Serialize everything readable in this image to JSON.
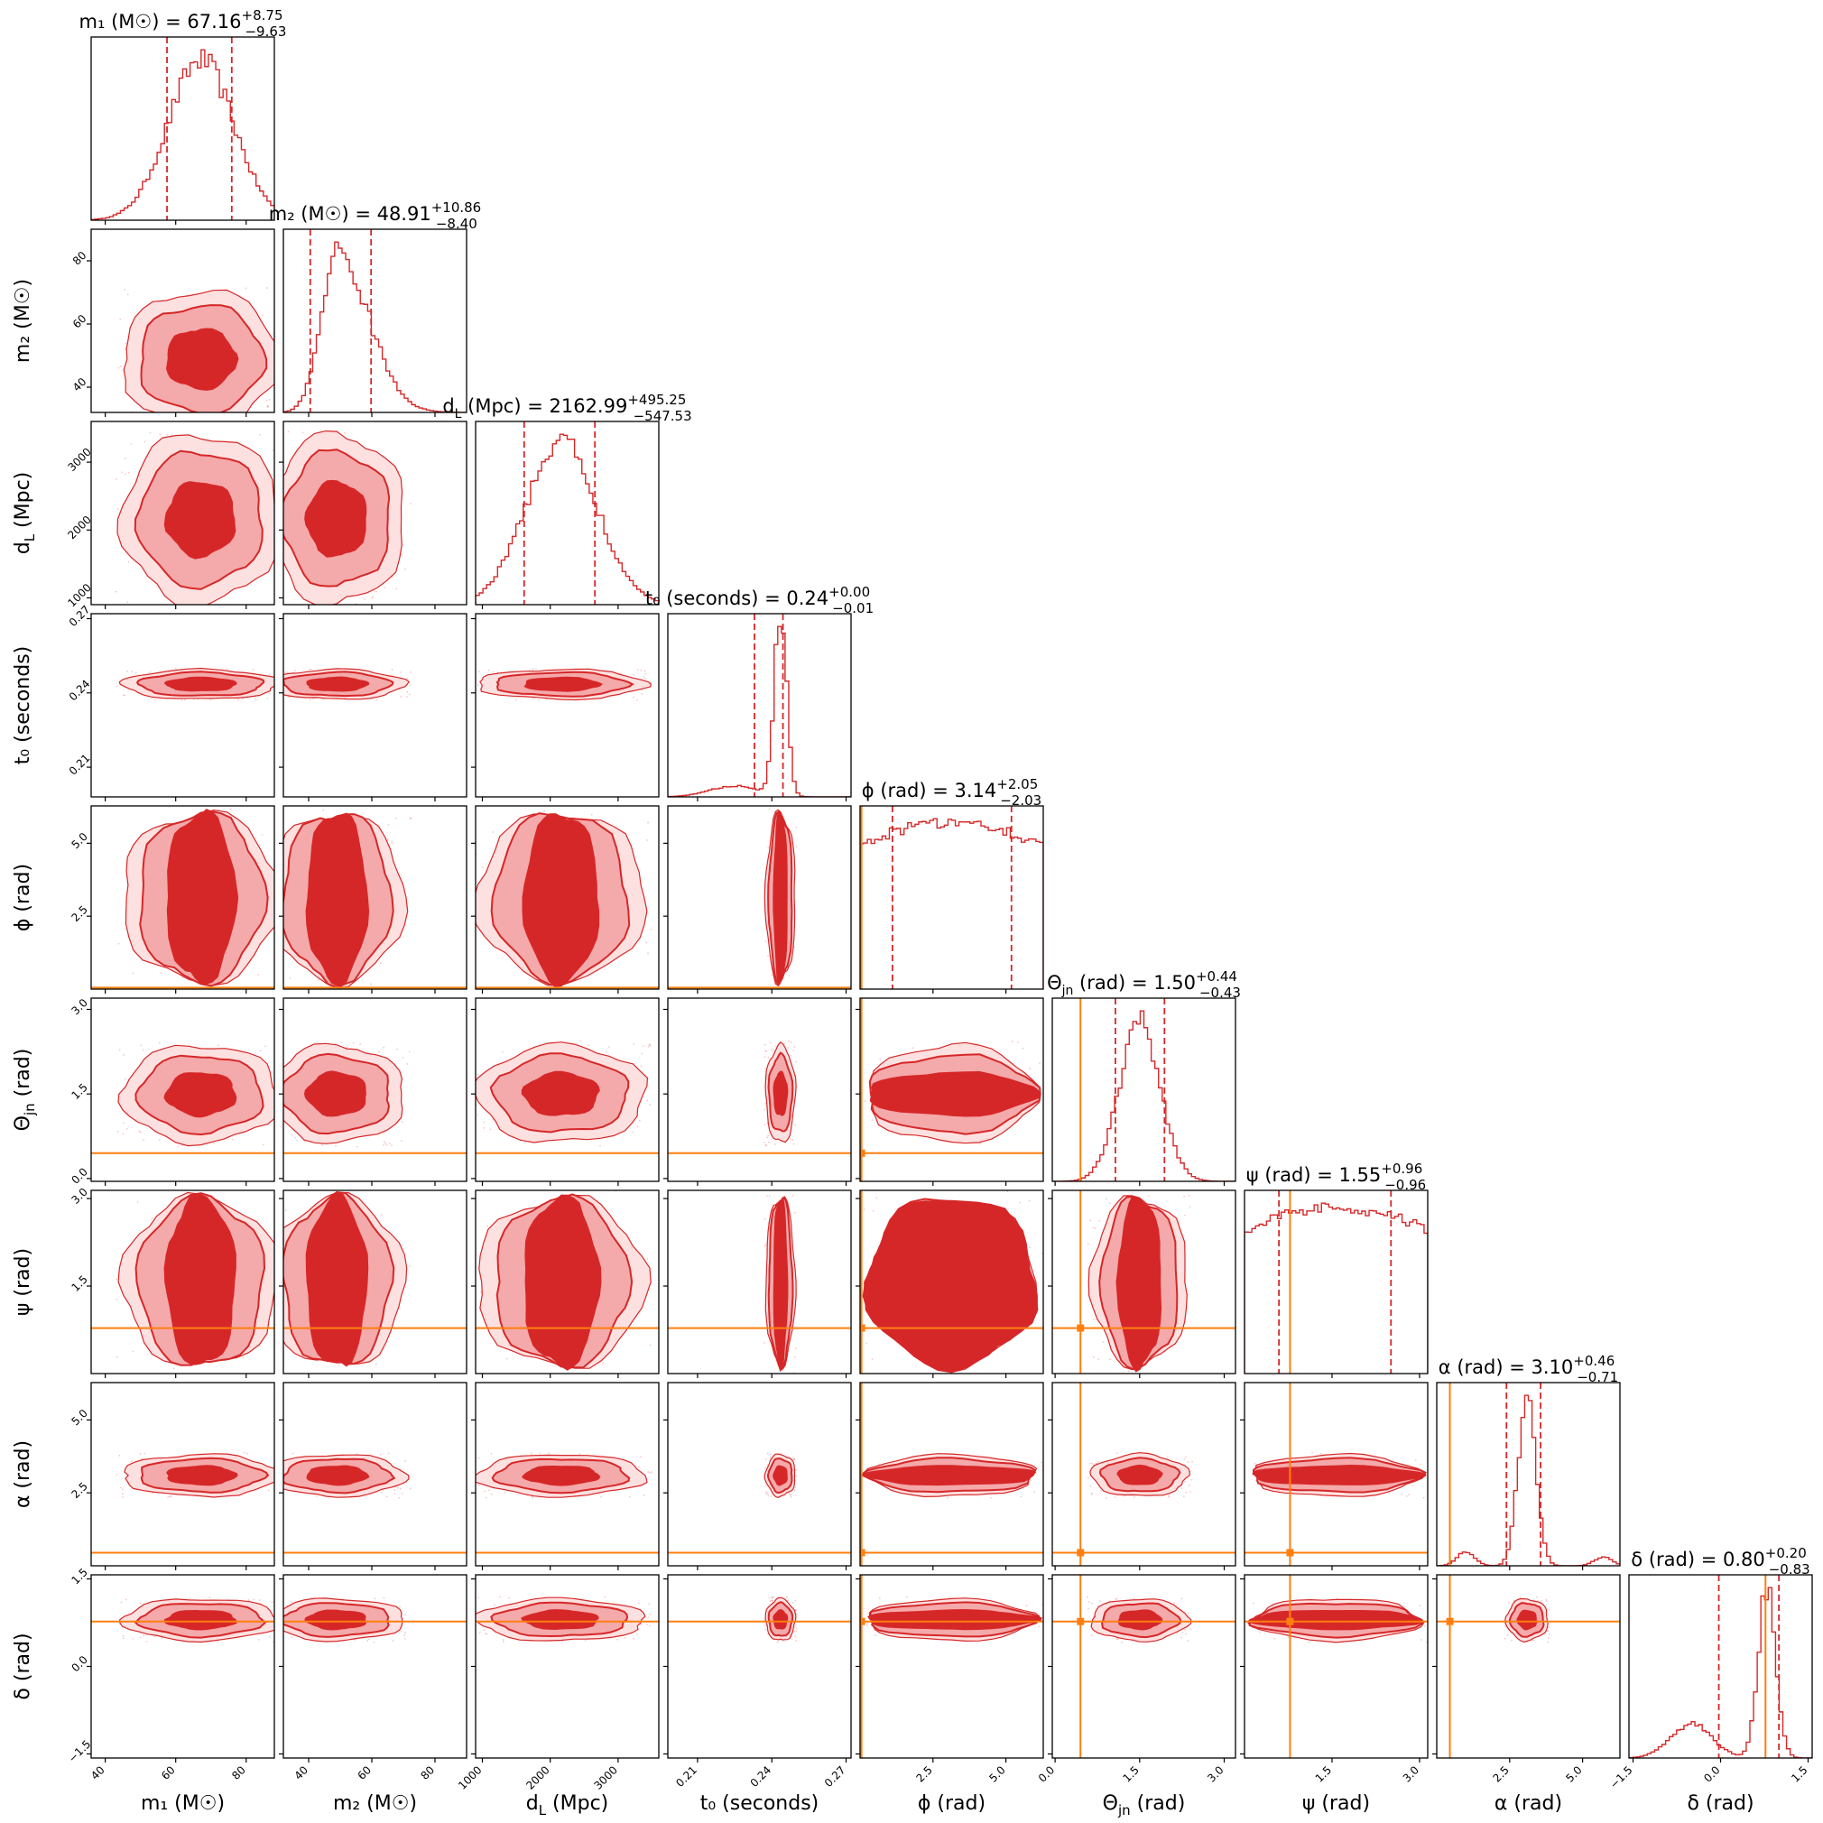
{
  "chart_data": {
    "type": "corner",
    "colors": {
      "posterior": "#d62728",
      "posterior_light": "#f4a9aa",
      "truth": "#ff7f0e"
    },
    "params": [
      {
        "key": "m1",
        "label": "m₁ (M☉)",
        "title": {
          "name": "m₁ (M☉)",
          "median": "67.16",
          "plus": "+8.75",
          "minus": "−9.63"
        },
        "range": [
          36,
          88
        ],
        "ticks": [
          {
            "v": 40,
            "t": "40"
          },
          {
            "v": 60,
            "t": "60"
          },
          {
            "v": 80,
            "t": "80"
          }
        ],
        "median": 67.16,
        "q_low": 57.53,
        "q_high": 75.91,
        "hist_sd": 9.3,
        "truth": null
      },
      {
        "key": "m2",
        "label": "m₂ (M☉)",
        "title": {
          "name": "m₂ (M☉)",
          "median": "48.91",
          "plus": "+10.86",
          "minus": "−8.40"
        },
        "range": [
          32,
          90
        ],
        "ticks": [
          {
            "v": 40,
            "t": "40"
          },
          {
            "v": 60,
            "t": "60"
          },
          {
            "v": 80,
            "t": "80"
          }
        ],
        "median": 48.91,
        "q_low": 40.51,
        "q_high": 59.77,
        "hist_sd": 9.0,
        "truth": null
      },
      {
        "key": "dL",
        "label": "d_L (Mpc)",
        "title": {
          "name": "d_L (Mpc)",
          "median": "2162.99",
          "plus": "+495.25",
          "minus": "−547.53"
        },
        "range": [
          900,
          3600
        ],
        "ticks": [
          {
            "v": 1000,
            "t": "1000"
          },
          {
            "v": 2000,
            "t": "2000"
          },
          {
            "v": 3000,
            "t": "3000"
          }
        ],
        "median": 2162.99,
        "q_low": 1615.46,
        "q_high": 2658.24,
        "hist_sd": 520,
        "truth": null
      },
      {
        "key": "t0",
        "label": "t₀ (seconds)",
        "title": {
          "name": "t₀ (seconds)",
          "median": "0.24",
          "plus": "+0.00",
          "minus": "−0.01"
        },
        "range": [
          0.198,
          0.272
        ],
        "ticks": [
          {
            "v": 0.21,
            "t": "0.21"
          },
          {
            "v": 0.24,
            "t": "0.24"
          },
          {
            "v": 0.27,
            "t": "0.27"
          }
        ],
        "median": 0.2435,
        "q_low": 0.233,
        "q_high": 0.2445,
        "hist_sd": 0.0025,
        "truth": null
      },
      {
        "key": "phi",
        "label": "ϕ (rad)",
        "title": {
          "name": "ϕ (rad)",
          "median": "3.14",
          "plus": "+2.05",
          "minus": "−2.03"
        },
        "range": [
          0,
          6.28
        ],
        "ticks": [
          {
            "v": 2.5,
            "t": "2.5"
          },
          {
            "v": 5.0,
            "t": "5.0"
          }
        ],
        "median": 3.14,
        "q_low": 1.11,
        "q_high": 5.19,
        "hist_sd": null,
        "truth": 0.05
      },
      {
        "key": "theta",
        "label": "Θ_jn (rad)",
        "title": {
          "name": "Θ_jn (rad)",
          "median": "1.50",
          "plus": "+0.44",
          "minus": "−0.43"
        },
        "range": [
          -0.05,
          3.2
        ],
        "ticks": [
          {
            "v": 0.0,
            "t": "0.0"
          },
          {
            "v": 1.5,
            "t": "1.5"
          },
          {
            "v": 3.0,
            "t": "3.0"
          }
        ],
        "median": 1.5,
        "q_low": 1.07,
        "q_high": 1.94,
        "hist_sd": 0.36,
        "truth": 0.45
      },
      {
        "key": "psi",
        "label": "ψ (rad)",
        "title": {
          "name": "ψ (rad)",
          "median": "1.55",
          "plus": "+0.96",
          "minus": "−0.96"
        },
        "range": [
          0,
          3.14
        ],
        "ticks": [
          {
            "v": 1.5,
            "t": "1.5"
          },
          {
            "v": 3.0,
            "t": "3.0"
          }
        ],
        "median": 1.55,
        "q_low": 0.59,
        "q_high": 2.51,
        "hist_sd": null,
        "truth": 0.78
      },
      {
        "key": "alpha",
        "label": "α (rad)",
        "title": {
          "name": "α (rad)",
          "median": "3.10",
          "plus": "+0.46",
          "minus": "−0.71"
        },
        "range": [
          0,
          6.28
        ],
        "ticks": [
          {
            "v": 2.5,
            "t": "2.5"
          },
          {
            "v": 5.0,
            "t": "5.0"
          }
        ],
        "median": 3.1,
        "q_low": 2.39,
        "q_high": 3.56,
        "hist_sd": 0.3,
        "truth": 0.45
      },
      {
        "key": "delta",
        "label": "δ (rad)",
        "title": {
          "name": "δ (rad)",
          "median": "0.80",
          "plus": "+0.20",
          "minus": "−0.83"
        },
        "range": [
          -1.57,
          1.57
        ],
        "ticks": [
          {
            "v": -1.5,
            "t": "−1.5"
          },
          {
            "v": 0.0,
            "t": "0.0"
          },
          {
            "v": 1.5,
            "t": "1.5"
          }
        ],
        "median": 0.8,
        "q_low": -0.03,
        "q_high": 1.0,
        "hist_sd": 0.15,
        "truth": 0.77
      }
    ]
  }
}
